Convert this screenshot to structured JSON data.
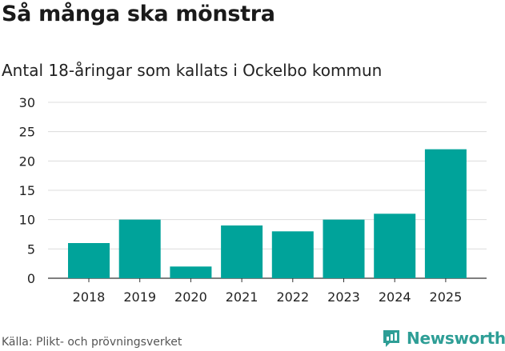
{
  "title": "Så många ska mönstra",
  "subtitle": "Antal 18-åringar som kallats i Ockelbo kommun",
  "source": "Källa: Plikt- och prövningsverket",
  "brand": {
    "name": "Newsworthy",
    "icon": "newsworthy-logo-icon",
    "color": "#2e9e96"
  },
  "chart_data": {
    "type": "bar",
    "categories": [
      "2018",
      "2019",
      "2020",
      "2021",
      "2022",
      "2023",
      "2024",
      "2025"
    ],
    "values": [
      6,
      10,
      2,
      9,
      8,
      10,
      11,
      22
    ],
    "ylim": [
      0,
      30
    ],
    "yticks": [
      0,
      5,
      10,
      15,
      20,
      25,
      30
    ],
    "grid": true,
    "bar_color": "#00a39a",
    "xlabel": "",
    "ylabel": ""
  }
}
